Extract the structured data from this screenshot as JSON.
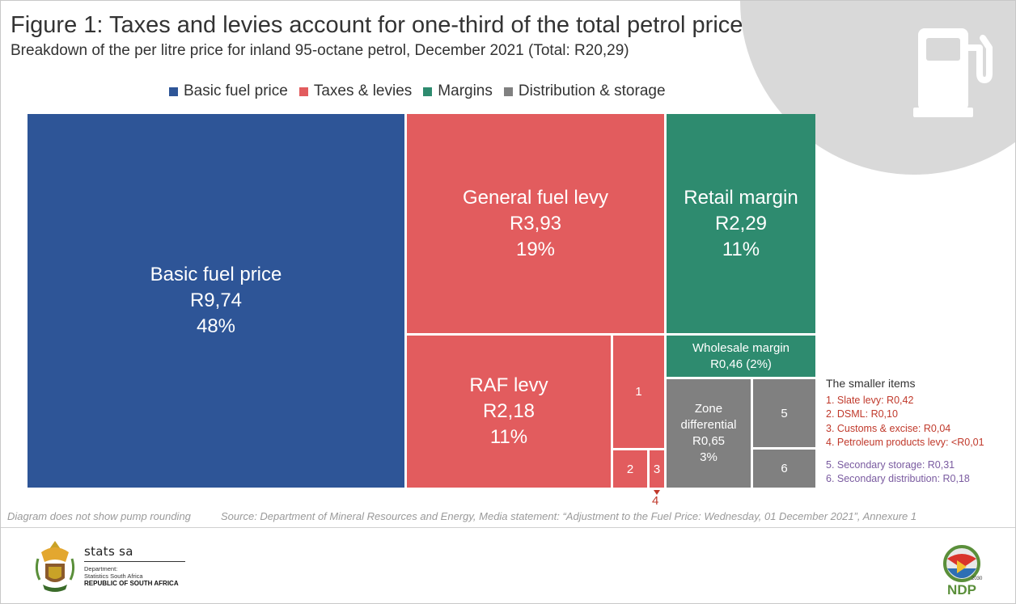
{
  "title": "Figure 1: Taxes and levies account for one-third of the total petrol price",
  "subtitle": "Breakdown of the per litre price for inland 95-octane petrol, December 2021 (Total: R20,29)",
  "legend": [
    {
      "label": "Basic fuel price",
      "color": "#2e5597"
    },
    {
      "label": "Taxes & levies",
      "color": "#e25c5e"
    },
    {
      "label": "Margins",
      "color": "#2e8b6f"
    },
    {
      "label": "Distribution & storage",
      "color": "#808080"
    }
  ],
  "tiles": {
    "basic": {
      "name": "Basic fuel price",
      "value": "R9,74",
      "pct": "48%"
    },
    "gfl": {
      "name": "General fuel levy",
      "value": "R3,93",
      "pct": "19%"
    },
    "retail": {
      "name": "Retail margin",
      "value": "R2,29",
      "pct": "11%"
    },
    "raf": {
      "name": "RAF levy",
      "value": "R2,18",
      "pct": "11%"
    },
    "wholesale": {
      "name": "Wholesale margin",
      "value": "R0,46 (2%)"
    },
    "zone": {
      "name1": "Zone",
      "name2": "differential",
      "value": "R0,65",
      "pct": "3%"
    },
    "n1": "1",
    "n2": "2",
    "n3": "3",
    "n4": "4",
    "n5": "5",
    "n6": "6"
  },
  "smaller_items": {
    "heading": "The smaller items",
    "items": [
      "1. Slate levy: R0,42",
      "2. DSML: R0,10",
      "3. Customs & excise: R0,04",
      "4. Petroleum products levy: <R0,01",
      "5. Secondary storage: R0,31",
      "6. Secondary distribution: R0,18"
    ]
  },
  "note": "Diagram does not show pump rounding",
  "source": "Source: Department of Mineral Resources and Energy, Media statement: “Adjustment to the Fuel Price: Wednesday, 01 December 2021”, Annexure 1",
  "footer": {
    "stats_name": "stats sa",
    "dept1": "Department:",
    "dept2": "Statistics South Africa",
    "republic": "REPUBLIC OF SOUTH AFRICA",
    "ndp": "NDP",
    "ndp_year": "2030"
  },
  "chart_data": {
    "type": "treemap",
    "title": "Figure 1: Taxes and levies account for one-third of the total petrol price",
    "subtitle": "Breakdown of the per litre price for inland 95-octane petrol, December 2021 (Total: R20,29)",
    "unit": "R per litre",
    "total": 20.29,
    "items": [
      {
        "name": "Basic fuel price",
        "group": "Basic fuel price",
        "value": 9.74,
        "pct": 48
      },
      {
        "name": "General fuel levy",
        "group": "Taxes & levies",
        "value": 3.93,
        "pct": 19
      },
      {
        "name": "RAF levy",
        "group": "Taxes & levies",
        "value": 2.18,
        "pct": 11
      },
      {
        "name": "Slate levy",
        "group": "Taxes & levies",
        "value": 0.42
      },
      {
        "name": "DSML",
        "group": "Taxes & levies",
        "value": 0.1
      },
      {
        "name": "Customs & excise",
        "group": "Taxes & levies",
        "value": 0.04
      },
      {
        "name": "Petroleum products levy",
        "group": "Taxes & levies",
        "value": "<0.01"
      },
      {
        "name": "Retail margin",
        "group": "Margins",
        "value": 2.29,
        "pct": 11
      },
      {
        "name": "Wholesale margin",
        "group": "Margins",
        "value": 0.46,
        "pct": 2
      },
      {
        "name": "Zone differential",
        "group": "Distribution & storage",
        "value": 0.65,
        "pct": 3
      },
      {
        "name": "Secondary storage",
        "group": "Distribution & storage",
        "value": 0.31
      },
      {
        "name": "Secondary distribution",
        "group": "Distribution & storage",
        "value": 0.18
      }
    ]
  }
}
